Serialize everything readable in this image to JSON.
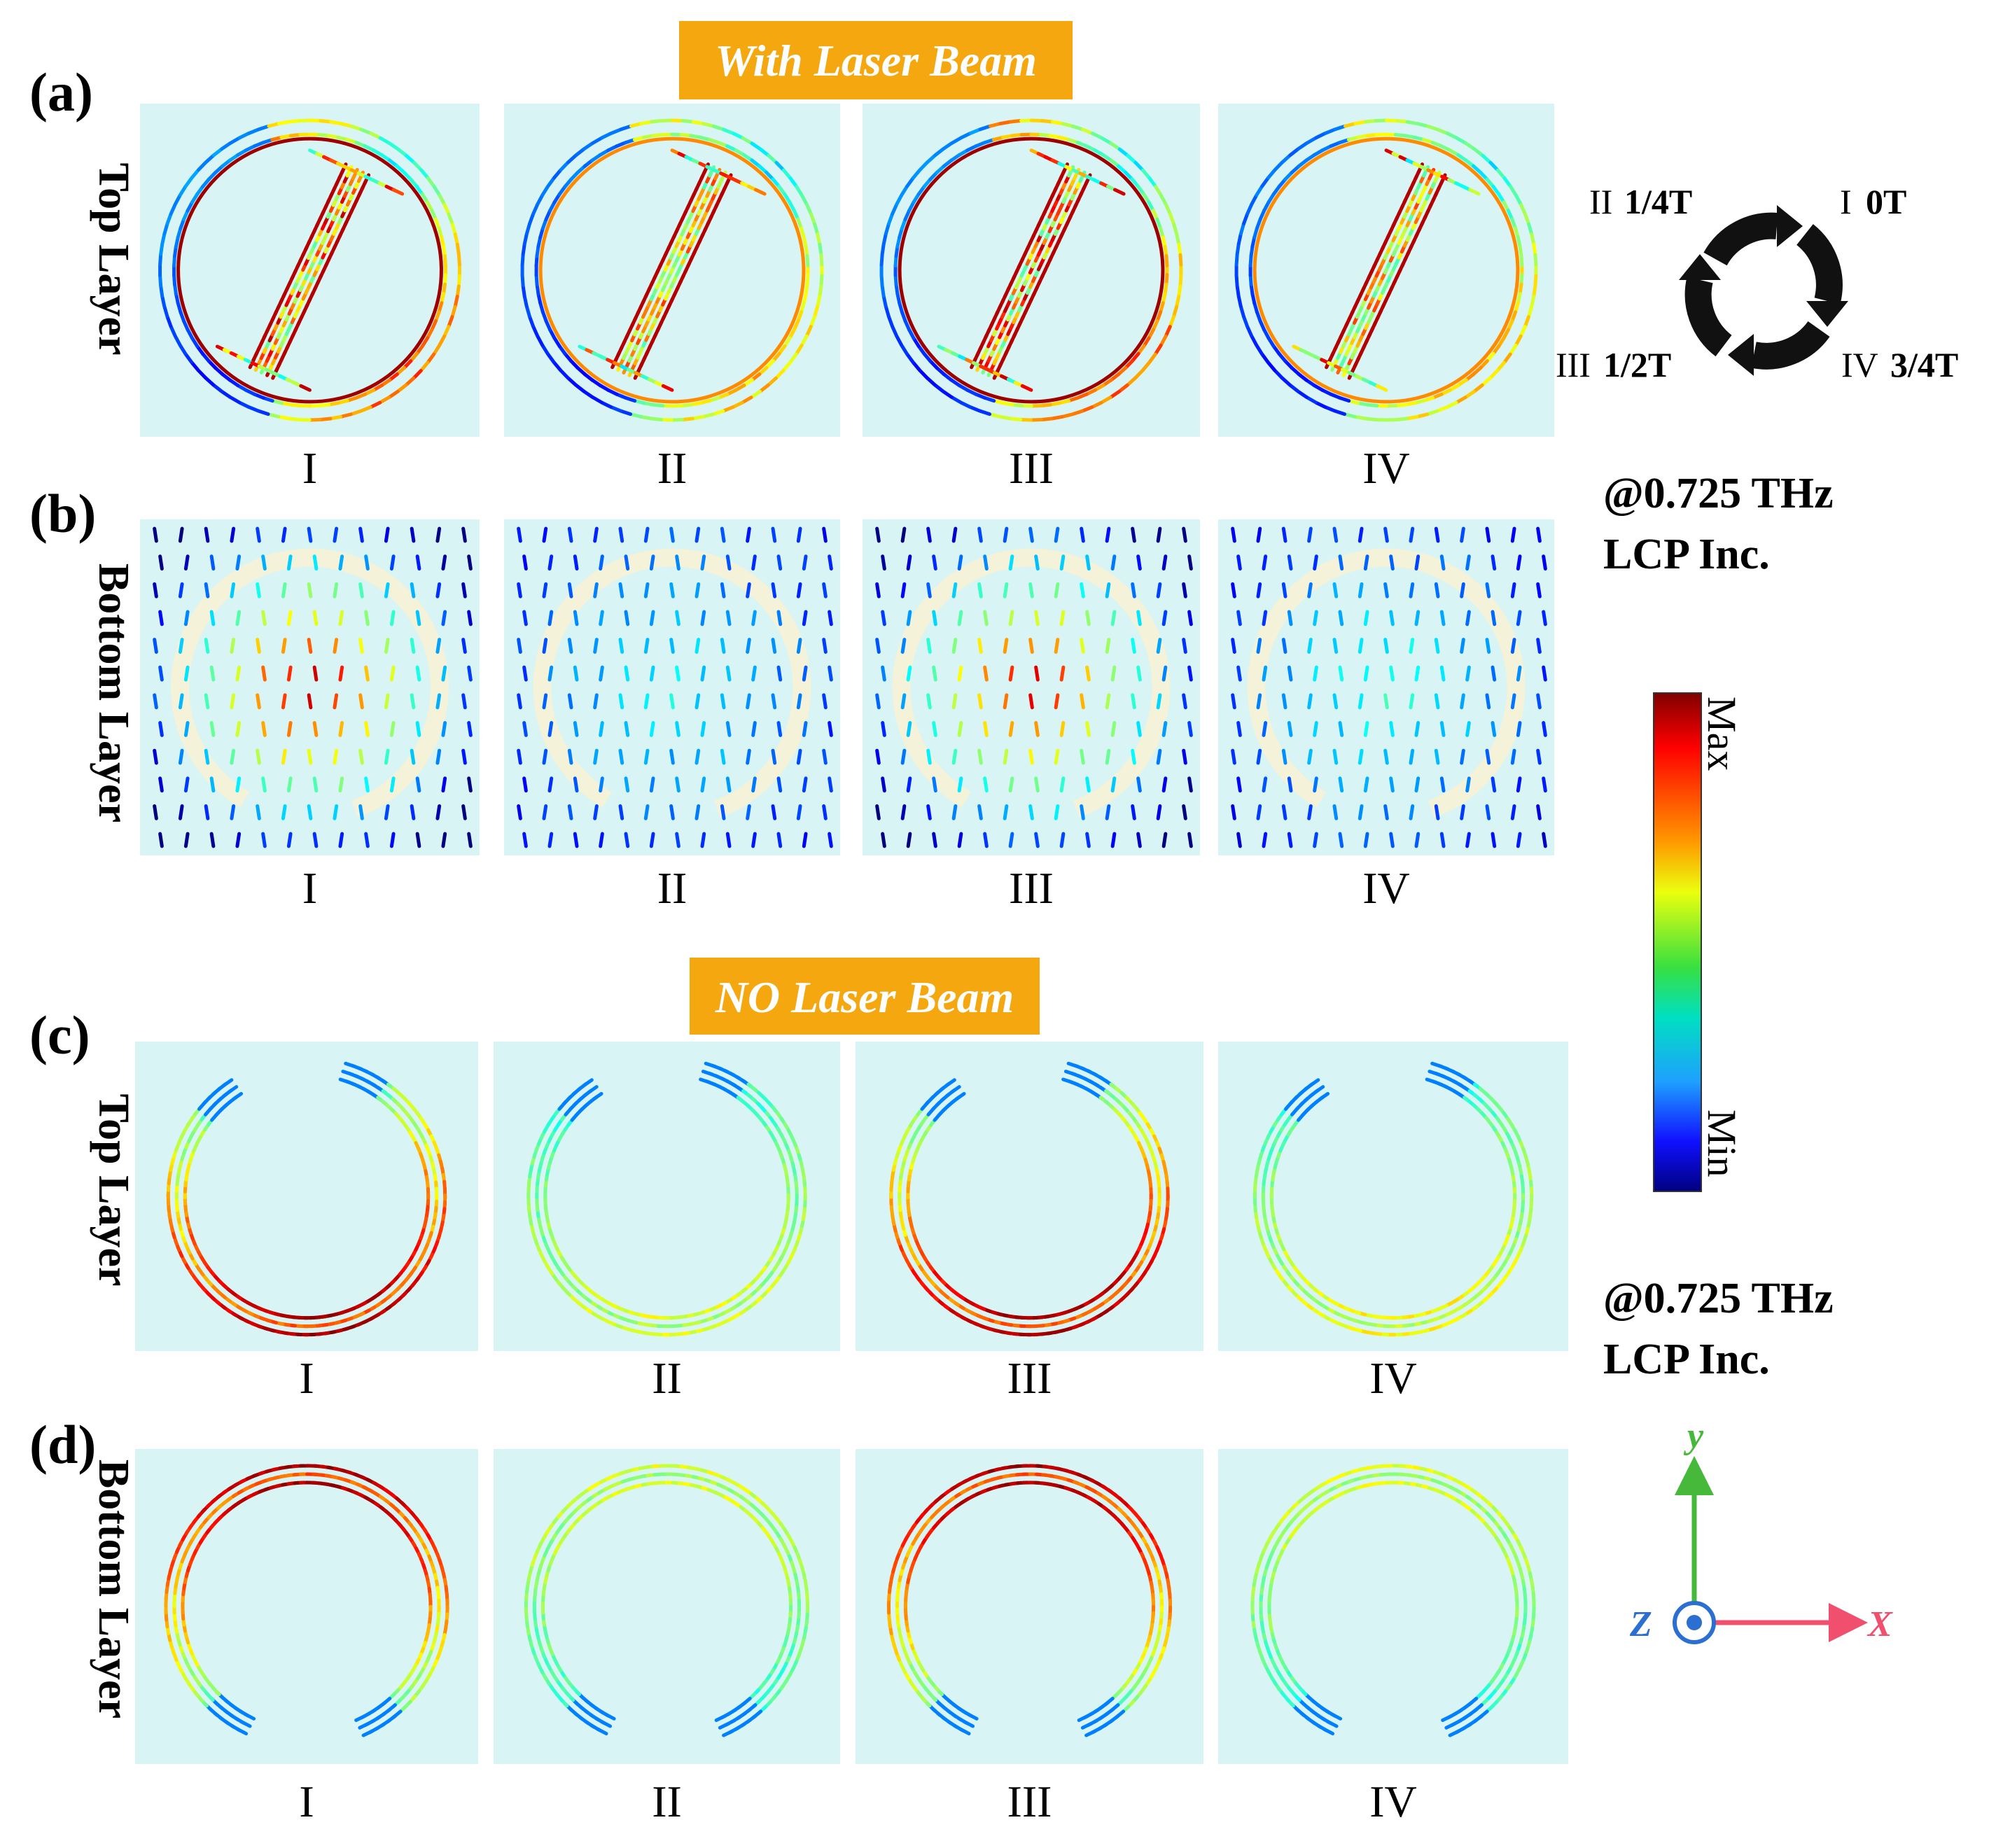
{
  "banners": {
    "with_laser": "With Laser Beam",
    "no_laser": "NO Laser Beam"
  },
  "panel_letters": {
    "a": "(a)",
    "b": "(b)",
    "c": "(c)",
    "d": "(d)"
  },
  "row_labels": {
    "a": "Top Layer",
    "b": "Bottom Layer",
    "c": "Top Layer",
    "d": "Bottom Layer"
  },
  "phase_columns": [
    "I",
    "II",
    "III",
    "IV"
  ],
  "phase_legend": {
    "I": {
      "roman": "I",
      "frac": "0T"
    },
    "II": {
      "roman": "II",
      "frac": "1/4T"
    },
    "III": {
      "roman": "III",
      "frac": "1/2T"
    },
    "IV": {
      "roman": "IV",
      "frac": "3/4T"
    }
  },
  "conditions": {
    "upper": {
      "freq": "@0.725 THz",
      "incidence": "LCP Inc."
    },
    "lower": {
      "freq": "@0.725 THz",
      "incidence": "LCP Inc."
    }
  },
  "colorbar": {
    "max_label": "Max",
    "min_label": "Min",
    "colormap": "jet"
  },
  "axes": {
    "x": "X",
    "y": "y",
    "z": "Z"
  },
  "colors": {
    "banner": "#f5a70f",
    "panel_bg": "#d8f4f4",
    "axis_x": "#f0506e",
    "axis_y": "#46b83a",
    "axis_z": "#2a6fd1"
  },
  "intensity": {
    "a_top": [
      1.0,
      0.75,
      1.0,
      0.75
    ],
    "b_bottom": [
      0.8,
      0.2,
      0.75,
      0.25
    ],
    "c_top": [
      0.95,
      0.35,
      0.95,
      0.4
    ],
    "d_bottom": [
      0.95,
      0.35,
      0.95,
      0.35
    ]
  }
}
